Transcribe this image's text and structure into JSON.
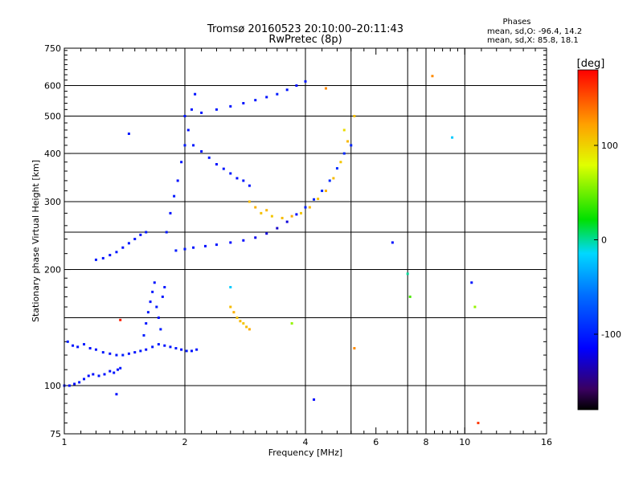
{
  "chart_data": {
    "type": "scatter",
    "title": "Tromsø 20160523 20:10:00–20:11:43",
    "subtitle": "RwPretec (8p)",
    "stats_header": "Phases",
    "stats_line1": "mean, sd,O:  -96.4, 14.2",
    "stats_line2": "mean, sd,X:  85.8, 18.1",
    "xlabel": "Frequency [MHz]",
    "ylabel": "Stationary phase Virtual Height [km]",
    "x_scale": "log",
    "y_scale": "log",
    "xlim": [
      1,
      16
    ],
    "ylim": [
      75,
      750
    ],
    "x_ticks": [
      1,
      2,
      4,
      6,
      8,
      10,
      16
    ],
    "x_tick_labels": [
      "1",
      "2",
      "4",
      "6",
      "8",
      "10",
      "16"
    ],
    "y_ticks": [
      75,
      100,
      200,
      300,
      400,
      500,
      600,
      750
    ],
    "y_tick_labels": [
      "75",
      "100",
      "200",
      "300",
      "400",
      "500",
      "600",
      "750"
    ],
    "x_minor_ticks": [
      1.1,
      1.2,
      1.3,
      1.4,
      1.5,
      1.6,
      1.7,
      1.8,
      1.9,
      2.2,
      2.4,
      2.6,
      2.8,
      3.0,
      3.2,
      3.4,
      3.6,
      3.8,
      4.4,
      4.8,
      5.2,
      5.6,
      6.4,
      6.8,
      7.2,
      7.6,
      8.4,
      8.8,
      9.2,
      9.6,
      11,
      12,
      13,
      14,
      15
    ],
    "y_minor_ticks": [
      80,
      85,
      90,
      95,
      110,
      120,
      130,
      140,
      150,
      160,
      170,
      180,
      190,
      220,
      240,
      260,
      280,
      320,
      340,
      360,
      380,
      420,
      440,
      460,
      480,
      520,
      540,
      560,
      580,
      620,
      640,
      660,
      680,
      700,
      720,
      740
    ],
    "vgrid": [
      2,
      4,
      5.2,
      7.2,
      8,
      10
    ],
    "hgrid": [
      100,
      150,
      200,
      250,
      300,
      400,
      500,
      600
    ],
    "grid": true,
    "colorbar": {
      "label": "[deg]",
      "range": [
        -180,
        180
      ],
      "tick_values": [
        100,
        0,
        -100
      ],
      "tick_labels": [
        "100",
        "0",
        "-100"
      ]
    },
    "series": [
      {
        "x": [
          1.0,
          1.03,
          1.06,
          1.09,
          1.12,
          1.15,
          1.18,
          1.22,
          1.26,
          1.3,
          1.33,
          1.36,
          1.38
        ],
        "y": [
          100,
          100,
          101,
          102,
          104,
          106,
          107,
          106,
          107,
          109,
          108,
          110,
          111
        ],
        "phase": [
          -105,
          -108,
          -110,
          -104,
          -106,
          -110,
          -108,
          -104,
          -106,
          -109,
          -105,
          -107,
          -103
        ]
      },
      {
        "x": [
          1.02,
          1.05,
          1.08,
          1.12,
          1.16,
          1.2,
          1.25,
          1.3,
          1.35,
          1.4,
          1.45,
          1.5,
          1.55,
          1.6,
          1.66,
          1.72,
          1.78,
          1.84,
          1.9,
          1.96,
          2.02,
          2.08,
          2.14
        ],
        "y": [
          130,
          127,
          126,
          128,
          125,
          124,
          122,
          121,
          120,
          120,
          121,
          122,
          123,
          124,
          126,
          128,
          127,
          126,
          125,
          124,
          123,
          123,
          124
        ],
        "phase": [
          -100,
          -104,
          -106,
          -102,
          -108,
          -105,
          -103,
          -107,
          -104,
          -101,
          -106,
          -105,
          -103,
          -108,
          -104,
          -102,
          -106,
          -105,
          -103,
          -107,
          -104,
          -106,
          -105
        ]
      },
      {
        "x": [
          1.58,
          1.6,
          1.62,
          1.64,
          1.66,
          1.68,
          1.7,
          1.72,
          1.74,
          1.76,
          1.78
        ],
        "y": [
          135,
          145,
          155,
          165,
          175,
          185,
          160,
          150,
          140,
          170,
          180
        ],
        "phase": [
          -100,
          -105,
          -102,
          -108,
          -104,
          -106,
          -103,
          -107,
          -101,
          -105,
          -104
        ]
      },
      {
        "x": [
          1.2,
          1.25,
          1.3,
          1.35,
          1.4,
          1.45,
          1.5,
          1.55,
          1.6
        ],
        "y": [
          212,
          214,
          218,
          222,
          228,
          234,
          240,
          246,
          250
        ],
        "phase": [
          -102,
          -106,
          -108,
          -104,
          -107,
          -103,
          -105,
          -108,
          -104
        ]
      },
      {
        "x": [
          1.8,
          1.84,
          1.88,
          1.92,
          1.96,
          2.0,
          2.04,
          2.08,
          2.12
        ],
        "y": [
          250,
          280,
          310,
          340,
          380,
          420,
          460,
          520,
          570
        ],
        "phase": [
          -104,
          -106,
          -103,
          -108,
          -105,
          -102,
          -107,
          -104,
          -106
        ]
      },
      {
        "x": [
          1.9,
          2.0,
          2.1,
          2.25,
          2.4,
          2.6,
          2.8,
          3.0,
          3.2,
          3.4,
          3.6,
          3.8,
          4.0,
          4.2,
          4.4,
          4.6,
          4.8,
          5.0,
          5.2
        ],
        "y": [
          224,
          226,
          228,
          230,
          232,
          235,
          238,
          242,
          248,
          256,
          266,
          278,
          290,
          304,
          320,
          340,
          366,
          400,
          420
        ],
        "phase": [
          -102,
          -104,
          -106,
          -108,
          -105,
          -110,
          -112,
          -120,
          -125,
          -130,
          -125,
          -110,
          -100,
          -98,
          -96,
          -94,
          -92,
          -95,
          -98
        ]
      },
      {
        "x": [
          2.0,
          2.2,
          2.4,
          2.6,
          2.8,
          3.0,
          3.2,
          3.4,
          3.6,
          3.8,
          4.0
        ],
        "y": [
          500,
          510,
          520,
          530,
          540,
          550,
          560,
          570,
          585,
          600,
          615
        ],
        "phase": [
          -104,
          -106,
          -103,
          -105,
          -107,
          -104,
          -106,
          -102,
          -105,
          -108,
          -104
        ]
      },
      {
        "x": [
          2.1,
          2.2,
          2.3,
          2.4,
          2.5,
          2.6,
          2.7,
          2.8,
          2.9
        ],
        "y": [
          420,
          405,
          390,
          375,
          365,
          355,
          345,
          340,
          330
        ],
        "phase": [
          -103,
          -106,
          -104,
          -108,
          -105,
          -102,
          -107,
          -104,
          -106
        ]
      },
      {
        "x": [
          2.9,
          3.0,
          3.1,
          3.2,
          3.3,
          3.5,
          3.7,
          3.9,
          4.1,
          4.3,
          4.5,
          4.7,
          4.9,
          5.1,
          5.3
        ],
        "y": [
          300,
          290,
          280,
          285,
          275,
          272,
          275,
          280,
          290,
          305,
          320,
          345,
          380,
          430,
          500
        ],
        "phase": [
          110,
          115,
          108,
          112,
          105,
          110,
          118,
          105,
          112,
          108,
          115,
          110,
          105,
          112,
          108
        ]
      },
      {
        "x": [
          2.6,
          2.65,
          2.7,
          2.75,
          2.8,
          2.85,
          2.9
        ],
        "y": [
          160,
          155,
          150,
          147,
          145,
          142,
          140
        ],
        "phase": [
          110,
          115,
          108,
          112,
          105,
          110,
          118
        ]
      },
      {
        "x": [
          1.35,
          1.38,
          1.45,
          2.6,
          3.7,
          4.2,
          4.5,
          5.0,
          5.3,
          6.6,
          7.2,
          7.3,
          8.3,
          9.3,
          10.4,
          10.6,
          10.8
        ],
        "y": [
          95,
          148,
          450,
          180,
          145,
          92,
          590,
          460,
          125,
          235,
          195,
          170,
          635,
          440,
          185,
          160,
          80
        ],
        "phase": [
          -108,
          170,
          -104,
          -20,
          60,
          -112,
          130,
          95,
          130,
          -108,
          0,
          40,
          130,
          -20,
          -105,
          60,
          160
        ]
      }
    ]
  }
}
